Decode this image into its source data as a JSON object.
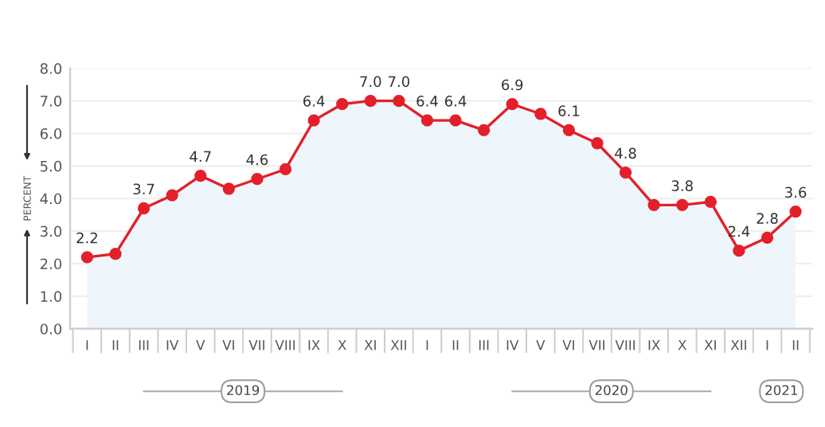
{
  "chart_data": {
    "type": "area",
    "ylabel": "PERCENT",
    "categories": [
      "I",
      "II",
      "III",
      "IV",
      "V",
      "VI",
      "VII",
      "VIII",
      "IX",
      "X",
      "XI",
      "XII",
      "I",
      "II",
      "III",
      "IV",
      "V",
      "VI",
      "VII",
      "VIII",
      "IX",
      "X",
      "XI",
      "XII",
      "I",
      "II"
    ],
    "series": [
      {
        "color": "#e3202a",
        "values": [
          2.2,
          2.3,
          3.7,
          4.1,
          4.7,
          4.3,
          4.6,
          4.9,
          6.4,
          6.9,
          7.0,
          7.0,
          6.4,
          6.4,
          6.1,
          6.9,
          6.6,
          6.1,
          5.7,
          4.8,
          3.8,
          3.8,
          3.9,
          2.4,
          2.8,
          3.6
        ],
        "value_labels": [
          "2.2",
          null,
          "3.7",
          null,
          "4.7",
          null,
          "4.6",
          null,
          "6.4",
          null,
          "7.0",
          "7.0",
          "6.4",
          "6.4",
          null,
          "6.9",
          null,
          "6.1",
          null,
          "4.8",
          null,
          "3.8",
          null,
          "2.4",
          "2.8",
          "3.6"
        ]
      }
    ],
    "ylim": [
      0,
      8
    ],
    "yticks": [
      "0.0",
      "1.0",
      "2.0",
      "3.0",
      "4.0",
      "5.0",
      "6.0",
      "7.0",
      "8.0"
    ],
    "grid": "y",
    "marker": "circle",
    "line_style": "solid",
    "annotations": [
      "2019",
      "2020",
      "2021"
    ]
  }
}
